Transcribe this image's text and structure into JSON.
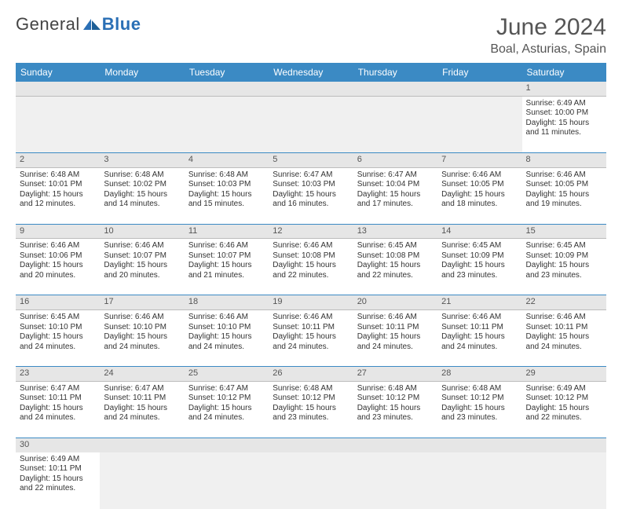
{
  "logo": {
    "text1": "General",
    "text2": "Blue"
  },
  "title": "June 2024",
  "location": "Boal, Asturias, Spain",
  "colors": {
    "header_bg": "#3b8ac4",
    "header_text": "#ffffff",
    "daynum_bg": "#e6e6e6",
    "row_border": "#3b8ac4",
    "logo_accent": "#2a6fb5"
  },
  "weekdays": [
    "Sunday",
    "Monday",
    "Tuesday",
    "Wednesday",
    "Thursday",
    "Friday",
    "Saturday"
  ],
  "weeks": [
    {
      "nums": [
        "",
        "",
        "",
        "",
        "",
        "",
        "1"
      ],
      "cells": [
        null,
        null,
        null,
        null,
        null,
        null,
        {
          "sunrise": "Sunrise: 6:49 AM",
          "sunset": "Sunset: 10:00 PM",
          "day1": "Daylight: 15 hours",
          "day2": "and 11 minutes."
        }
      ]
    },
    {
      "nums": [
        "2",
        "3",
        "4",
        "5",
        "6",
        "7",
        "8"
      ],
      "cells": [
        {
          "sunrise": "Sunrise: 6:48 AM",
          "sunset": "Sunset: 10:01 PM",
          "day1": "Daylight: 15 hours",
          "day2": "and 12 minutes."
        },
        {
          "sunrise": "Sunrise: 6:48 AM",
          "sunset": "Sunset: 10:02 PM",
          "day1": "Daylight: 15 hours",
          "day2": "and 14 minutes."
        },
        {
          "sunrise": "Sunrise: 6:48 AM",
          "sunset": "Sunset: 10:03 PM",
          "day1": "Daylight: 15 hours",
          "day2": "and 15 minutes."
        },
        {
          "sunrise": "Sunrise: 6:47 AM",
          "sunset": "Sunset: 10:03 PM",
          "day1": "Daylight: 15 hours",
          "day2": "and 16 minutes."
        },
        {
          "sunrise": "Sunrise: 6:47 AM",
          "sunset": "Sunset: 10:04 PM",
          "day1": "Daylight: 15 hours",
          "day2": "and 17 minutes."
        },
        {
          "sunrise": "Sunrise: 6:46 AM",
          "sunset": "Sunset: 10:05 PM",
          "day1": "Daylight: 15 hours",
          "day2": "and 18 minutes."
        },
        {
          "sunrise": "Sunrise: 6:46 AM",
          "sunset": "Sunset: 10:05 PM",
          "day1": "Daylight: 15 hours",
          "day2": "and 19 minutes."
        }
      ]
    },
    {
      "nums": [
        "9",
        "10",
        "11",
        "12",
        "13",
        "14",
        "15"
      ],
      "cells": [
        {
          "sunrise": "Sunrise: 6:46 AM",
          "sunset": "Sunset: 10:06 PM",
          "day1": "Daylight: 15 hours",
          "day2": "and 20 minutes."
        },
        {
          "sunrise": "Sunrise: 6:46 AM",
          "sunset": "Sunset: 10:07 PM",
          "day1": "Daylight: 15 hours",
          "day2": "and 20 minutes."
        },
        {
          "sunrise": "Sunrise: 6:46 AM",
          "sunset": "Sunset: 10:07 PM",
          "day1": "Daylight: 15 hours",
          "day2": "and 21 minutes."
        },
        {
          "sunrise": "Sunrise: 6:46 AM",
          "sunset": "Sunset: 10:08 PM",
          "day1": "Daylight: 15 hours",
          "day2": "and 22 minutes."
        },
        {
          "sunrise": "Sunrise: 6:45 AM",
          "sunset": "Sunset: 10:08 PM",
          "day1": "Daylight: 15 hours",
          "day2": "and 22 minutes."
        },
        {
          "sunrise": "Sunrise: 6:45 AM",
          "sunset": "Sunset: 10:09 PM",
          "day1": "Daylight: 15 hours",
          "day2": "and 23 minutes."
        },
        {
          "sunrise": "Sunrise: 6:45 AM",
          "sunset": "Sunset: 10:09 PM",
          "day1": "Daylight: 15 hours",
          "day2": "and 23 minutes."
        }
      ]
    },
    {
      "nums": [
        "16",
        "17",
        "18",
        "19",
        "20",
        "21",
        "22"
      ],
      "cells": [
        {
          "sunrise": "Sunrise: 6:45 AM",
          "sunset": "Sunset: 10:10 PM",
          "day1": "Daylight: 15 hours",
          "day2": "and 24 minutes."
        },
        {
          "sunrise": "Sunrise: 6:46 AM",
          "sunset": "Sunset: 10:10 PM",
          "day1": "Daylight: 15 hours",
          "day2": "and 24 minutes."
        },
        {
          "sunrise": "Sunrise: 6:46 AM",
          "sunset": "Sunset: 10:10 PM",
          "day1": "Daylight: 15 hours",
          "day2": "and 24 minutes."
        },
        {
          "sunrise": "Sunrise: 6:46 AM",
          "sunset": "Sunset: 10:11 PM",
          "day1": "Daylight: 15 hours",
          "day2": "and 24 minutes."
        },
        {
          "sunrise": "Sunrise: 6:46 AM",
          "sunset": "Sunset: 10:11 PM",
          "day1": "Daylight: 15 hours",
          "day2": "and 24 minutes."
        },
        {
          "sunrise": "Sunrise: 6:46 AM",
          "sunset": "Sunset: 10:11 PM",
          "day1": "Daylight: 15 hours",
          "day2": "and 24 minutes."
        },
        {
          "sunrise": "Sunrise: 6:46 AM",
          "sunset": "Sunset: 10:11 PM",
          "day1": "Daylight: 15 hours",
          "day2": "and 24 minutes."
        }
      ]
    },
    {
      "nums": [
        "23",
        "24",
        "25",
        "26",
        "27",
        "28",
        "29"
      ],
      "cells": [
        {
          "sunrise": "Sunrise: 6:47 AM",
          "sunset": "Sunset: 10:11 PM",
          "day1": "Daylight: 15 hours",
          "day2": "and 24 minutes."
        },
        {
          "sunrise": "Sunrise: 6:47 AM",
          "sunset": "Sunset: 10:11 PM",
          "day1": "Daylight: 15 hours",
          "day2": "and 24 minutes."
        },
        {
          "sunrise": "Sunrise: 6:47 AM",
          "sunset": "Sunset: 10:12 PM",
          "day1": "Daylight: 15 hours",
          "day2": "and 24 minutes."
        },
        {
          "sunrise": "Sunrise: 6:48 AM",
          "sunset": "Sunset: 10:12 PM",
          "day1": "Daylight: 15 hours",
          "day2": "and 23 minutes."
        },
        {
          "sunrise": "Sunrise: 6:48 AM",
          "sunset": "Sunset: 10:12 PM",
          "day1": "Daylight: 15 hours",
          "day2": "and 23 minutes."
        },
        {
          "sunrise": "Sunrise: 6:48 AM",
          "sunset": "Sunset: 10:12 PM",
          "day1": "Daylight: 15 hours",
          "day2": "and 23 minutes."
        },
        {
          "sunrise": "Sunrise: 6:49 AM",
          "sunset": "Sunset: 10:12 PM",
          "day1": "Daylight: 15 hours",
          "day2": "and 22 minutes."
        }
      ]
    },
    {
      "nums": [
        "30",
        "",
        "",
        "",
        "",
        "",
        ""
      ],
      "cells": [
        {
          "sunrise": "Sunrise: 6:49 AM",
          "sunset": "Sunset: 10:11 PM",
          "day1": "Daylight: 15 hours",
          "day2": "and 22 minutes."
        },
        null,
        null,
        null,
        null,
        null,
        null
      ]
    }
  ]
}
